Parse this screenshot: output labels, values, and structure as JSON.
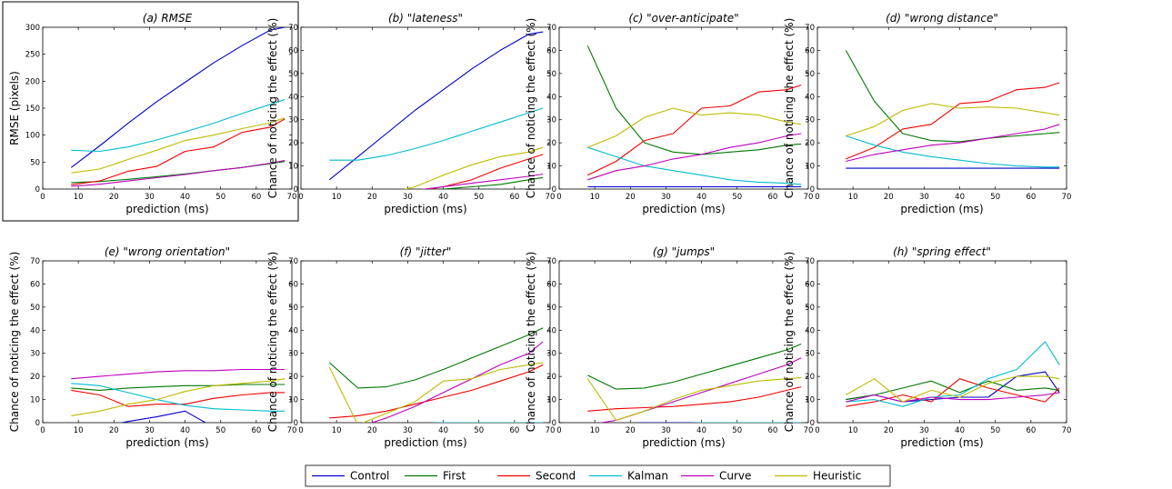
{
  "colors": {
    "Control": "#0000cc",
    "First": "#007700",
    "Second": "#ee0000",
    "Kalman": "#00bbcc",
    "Curve": "#bb00bb",
    "Heuristic": "#bbbb00"
  },
  "legend": [
    "Control",
    "First",
    "Second",
    "Kalman",
    "Curve",
    "Heuristic"
  ],
  "chart_data": [
    {
      "type": "line",
      "title": "(a) RMSE",
      "xlabel": "prediction (ms)",
      "ylabel": "RMSE (pixels)",
      "xlim": [
        0,
        70
      ],
      "ylim": [
        0,
        300
      ],
      "xticks": [
        0,
        10,
        20,
        30,
        40,
        50,
        60,
        70
      ],
      "yticks": [
        0,
        50,
        100,
        150,
        200,
        250,
        300
      ],
      "x": [
        8,
        16,
        24,
        32,
        40,
        48,
        56,
        64,
        68
      ],
      "series": [
        {
          "name": "Control",
          "values": [
            40,
            80,
            122,
            162,
            198,
            234,
            266,
            295,
            300
          ]
        },
        {
          "name": "First",
          "values": [
            12,
            14,
            18,
            23,
            28,
            34,
            40,
            47,
            51
          ]
        },
        {
          "name": "Second",
          "values": [
            8,
            15,
            33,
            42,
            70,
            78,
            105,
            115,
            130
          ]
        },
        {
          "name": "Kalman",
          "values": [
            72,
            70,
            78,
            91,
            106,
            122,
            140,
            157,
            166
          ]
        },
        {
          "name": "Curve",
          "values": [
            5,
            9,
            15,
            21,
            27,
            34,
            40,
            48,
            53
          ]
        },
        {
          "name": "Heuristic",
          "values": [
            30,
            37,
            55,
            72,
            90,
            100,
            112,
            123,
            132
          ]
        }
      ]
    },
    {
      "type": "line",
      "title": "(b) \"lateness\"",
      "xlabel": "prediction (ms)",
      "ylabel": "Chance of noticing the effect (%)",
      "xlim": [
        0,
        70
      ],
      "ylim": [
        0,
        70
      ],
      "xticks": [
        0,
        10,
        20,
        30,
        40,
        50,
        60,
        70
      ],
      "yticks": [
        0,
        10,
        20,
        30,
        40,
        50,
        60,
        70
      ],
      "x": [
        8,
        16,
        24,
        32,
        40,
        48,
        56,
        64,
        68
      ],
      "series": [
        {
          "name": "Control",
          "values": [
            4,
            14,
            24,
            34,
            43,
            52,
            60,
            67,
            68
          ]
        },
        {
          "name": "First",
          "values": [
            -2,
            -2,
            -2,
            -1,
            0,
            1,
            2,
            4,
            5
          ]
        },
        {
          "name": "Second",
          "values": [
            -2,
            -2,
            -2,
            -1,
            1,
            4,
            9,
            13,
            15
          ]
        },
        {
          "name": "Kalman",
          "values": [
            12.5,
            12.5,
            14.5,
            17.5,
            21,
            25,
            29,
            33,
            35
          ]
        },
        {
          "name": "Curve",
          "values": [
            -2,
            -2,
            -2,
            -0.5,
            1,
            2.5,
            4,
            5.5,
            6.5
          ]
        },
        {
          "name": "Heuristic",
          "values": [
            -2,
            -2,
            -2,
            1,
            6,
            10.5,
            14,
            16,
            18
          ]
        }
      ]
    },
    {
      "type": "line",
      "title": "(c) \"over-anticipate\"",
      "xlabel": "prediction (ms)",
      "ylabel": "Chance of noticing the effect (%)",
      "xlim": [
        0,
        70
      ],
      "ylim": [
        0,
        70
      ],
      "xticks": [
        0,
        10,
        20,
        30,
        40,
        50,
        60,
        70
      ],
      "yticks": [
        0,
        10,
        20,
        30,
        40,
        50,
        60,
        70
      ],
      "x": [
        8,
        16,
        24,
        32,
        40,
        48,
        56,
        64,
        68
      ],
      "series": [
        {
          "name": "Control",
          "values": [
            1,
            1,
            1,
            1,
            1,
            1,
            1,
            1,
            1
          ]
        },
        {
          "name": "First",
          "values": [
            62,
            35,
            20,
            16,
            15,
            16,
            17,
            19,
            19.5
          ]
        },
        {
          "name": "Second",
          "values": [
            6,
            12,
            21,
            24,
            35,
            36,
            42,
            43,
            45
          ]
        },
        {
          "name": "Kalman",
          "values": [
            18,
            14,
            10,
            8,
            6,
            4,
            3,
            2.5,
            2
          ]
        },
        {
          "name": "Curve",
          "values": [
            4,
            8,
            10,
            13,
            15,
            18,
            20,
            23,
            24
          ]
        },
        {
          "name": "Heuristic",
          "values": [
            18,
            23,
            31,
            35,
            32,
            33,
            32,
            29,
            28
          ]
        }
      ]
    },
    {
      "type": "line",
      "title": "(d) \"wrong distance\"",
      "xlabel": "prediction (ms)",
      "ylabel": "Chance of noticing the effect (%)",
      "xlim": [
        0,
        70
      ],
      "ylim": [
        0,
        70
      ],
      "xticks": [
        0,
        10,
        20,
        30,
        40,
        50,
        60,
        70
      ],
      "yticks": [
        0,
        10,
        20,
        30,
        40,
        50,
        60,
        70
      ],
      "x": [
        8,
        16,
        24,
        32,
        40,
        48,
        56,
        64,
        68
      ],
      "series": [
        {
          "name": "Control",
          "values": [
            9,
            9,
            9,
            9,
            9,
            9,
            9,
            9,
            9
          ]
        },
        {
          "name": "First",
          "values": [
            60,
            38,
            24,
            21,
            20.5,
            22,
            23,
            24,
            24.5
          ]
        },
        {
          "name": "Second",
          "values": [
            13,
            18,
            26,
            28,
            37,
            38,
            43,
            44,
            46
          ]
        },
        {
          "name": "Kalman",
          "values": [
            23,
            19,
            16,
            14,
            12.5,
            11,
            10,
            9.5,
            9.5
          ]
        },
        {
          "name": "Curve",
          "values": [
            12,
            15,
            17,
            19,
            20,
            22,
            24,
            26,
            28
          ]
        },
        {
          "name": "Heuristic",
          "values": [
            23,
            27,
            34,
            37,
            35,
            35.5,
            35,
            33,
            32
          ]
        }
      ]
    },
    {
      "type": "line",
      "title": "(e) \"wrong orientation\"",
      "xlabel": "prediction (ms)",
      "ylabel": "Chance of noticing the effect (%)",
      "xlim": [
        0,
        70
      ],
      "ylim": [
        0,
        70
      ],
      "xticks": [
        0,
        10,
        20,
        30,
        40,
        50,
        60,
        70
      ],
      "yticks": [
        0,
        10,
        20,
        30,
        40,
        50,
        60,
        70
      ],
      "x": [
        8,
        16,
        24,
        32,
        40,
        48,
        56,
        64,
        68
      ],
      "series": [
        {
          "name": "Control",
          "values": [
            null,
            -2,
            0.5,
            2.5,
            5,
            -2,
            null,
            null,
            null
          ]
        },
        {
          "name": "First",
          "values": [
            15,
            14,
            15,
            15.5,
            16,
            16,
            16.5,
            16.5,
            16.5
          ]
        },
        {
          "name": "Second",
          "values": [
            14,
            12,
            7,
            8,
            8,
            10.5,
            12,
            13,
            13
          ]
        },
        {
          "name": "Kalman",
          "values": [
            17,
            16,
            13,
            10,
            7.5,
            6,
            5.5,
            5,
            5
          ]
        },
        {
          "name": "Curve",
          "values": [
            19,
            20,
            21,
            22,
            22.5,
            22.5,
            23,
            23,
            23
          ]
        },
        {
          "name": "Heuristic",
          "values": [
            3,
            5,
            8,
            10,
            13.5,
            16,
            17,
            18,
            19
          ]
        }
      ]
    },
    {
      "type": "line",
      "title": "(f) \"jitter\"",
      "xlabel": "prediction (ms)",
      "ylabel": "Chance of noticing the effect (%)",
      "xlim": [
        0,
        70
      ],
      "ylim": [
        0,
        70
      ],
      "xticks": [
        0,
        10,
        20,
        30,
        40,
        50,
        60,
        70
      ],
      "yticks": [
        0,
        10,
        20,
        30,
        40,
        50,
        60,
        70
      ],
      "x": [
        8,
        16,
        24,
        32,
        40,
        48,
        56,
        64,
        68
      ],
      "series": [
        {
          "name": "Control",
          "values": [
            -2,
            -2,
            -1.5,
            -1.5,
            -1.5,
            -1.5,
            -1,
            -1,
            -1
          ]
        },
        {
          "name": "First",
          "values": [
            26,
            15,
            15.5,
            18.5,
            23,
            28,
            33,
            38,
            41
          ]
        },
        {
          "name": "Second",
          "values": [
            2,
            3,
            5,
            8,
            11,
            14,
            18,
            22,
            25
          ]
        },
        {
          "name": "Kalman",
          "values": [
            -2,
            -1,
            -1,
            -0.5,
            0,
            0,
            0,
            0,
            0
          ]
        },
        {
          "name": "Curve",
          "values": [
            -2,
            -2,
            2,
            7,
            13,
            19,
            25,
            30,
            35
          ]
        },
        {
          "name": "Heuristic",
          "values": [
            24,
            -1,
            4,
            9,
            18,
            19,
            23,
            25,
            26
          ]
        }
      ]
    },
    {
      "type": "line",
      "title": "(g) \"jumps\"",
      "xlabel": "prediction (ms)",
      "ylabel": "Chance of noticing the effect (%)",
      "xlim": [
        0,
        70
      ],
      "ylim": [
        0,
        70
      ],
      "xticks": [
        0,
        10,
        20,
        30,
        40,
        50,
        60,
        70
      ],
      "yticks": [
        0,
        10,
        20,
        30,
        40,
        50,
        60,
        70
      ],
      "x": [
        8,
        16,
        24,
        32,
        40,
        48,
        56,
        64,
        68
      ],
      "series": [
        {
          "name": "Control",
          "values": [
            -1,
            -0.5,
            0,
            0,
            0,
            0,
            0,
            0,
            0
          ]
        },
        {
          "name": "First",
          "values": [
            20.5,
            14.5,
            15,
            17.5,
            21,
            24.5,
            28,
            31.5,
            34
          ]
        },
        {
          "name": "Second",
          "values": [
            5,
            6,
            6.5,
            7,
            8,
            9,
            11,
            14,
            15.5
          ]
        },
        {
          "name": "Kalman",
          "values": [
            -1,
            -1,
            -0.5,
            -0.5,
            0,
            0,
            0,
            0,
            0
          ]
        },
        {
          "name": "Curve",
          "values": [
            -1,
            1,
            5,
            9,
            13,
            17,
            21,
            25,
            28
          ]
        },
        {
          "name": "Heuristic",
          "values": [
            19,
            1,
            5,
            10,
            14,
            16,
            18,
            19,
            19.5
          ]
        }
      ]
    },
    {
      "type": "line",
      "title": "(h) \"spring effect\"",
      "xlabel": "prediction (ms)",
      "ylabel": "Chance of noticing the effect (%)",
      "xlim": [
        0,
        70
      ],
      "ylim": [
        0,
        70
      ],
      "xticks": [
        0,
        10,
        20,
        30,
        40,
        50,
        60,
        70
      ],
      "yticks": [
        0,
        10,
        20,
        30,
        40,
        50,
        60,
        70
      ],
      "x": [
        8,
        16,
        24,
        32,
        40,
        48,
        56,
        64,
        68
      ],
      "series": [
        {
          "name": "Control",
          "values": [
            10,
            12,
            9,
            10,
            11,
            11,
            20,
            22,
            13
          ]
        },
        {
          "name": "First",
          "values": [
            10,
            12,
            15,
            18,
            13,
            18,
            14,
            15,
            14
          ]
        },
        {
          "name": "Second",
          "values": [
            7,
            9,
            12,
            9,
            19,
            15,
            12,
            9,
            15
          ]
        },
        {
          "name": "Kalman",
          "values": [
            9,
            10,
            7,
            11,
            12,
            19,
            23,
            35,
            25
          ]
        },
        {
          "name": "Curve",
          "values": [
            9,
            12,
            9,
            11,
            10,
            10,
            11,
            12,
            13
          ]
        },
        {
          "name": "Heuristic",
          "values": [
            12,
            19,
            9,
            14,
            11,
            17,
            20,
            20,
            19
          ]
        }
      ]
    }
  ]
}
